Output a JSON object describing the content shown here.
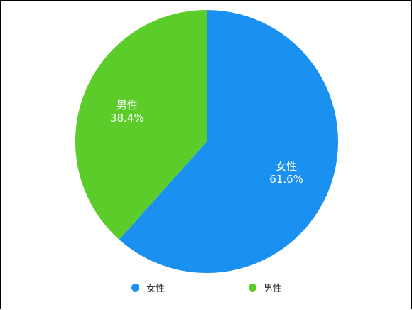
{
  "chart_data": {
    "type": "pie",
    "title": "",
    "slices": [
      {
        "label": "女性",
        "value": 61.6,
        "value_label": "61.6%",
        "color": "#1a90f0"
      },
      {
        "label": "男性",
        "value": 38.4,
        "value_label": "38.4%",
        "color": "#5ccc2a"
      }
    ],
    "start_angle": "12 o'clock",
    "direction": "clockwise",
    "legend_position": "bottom"
  },
  "legend": {
    "items": [
      {
        "label": "女性",
        "color": "#1a90f0"
      },
      {
        "label": "男性",
        "color": "#5ccc2a"
      }
    ]
  }
}
